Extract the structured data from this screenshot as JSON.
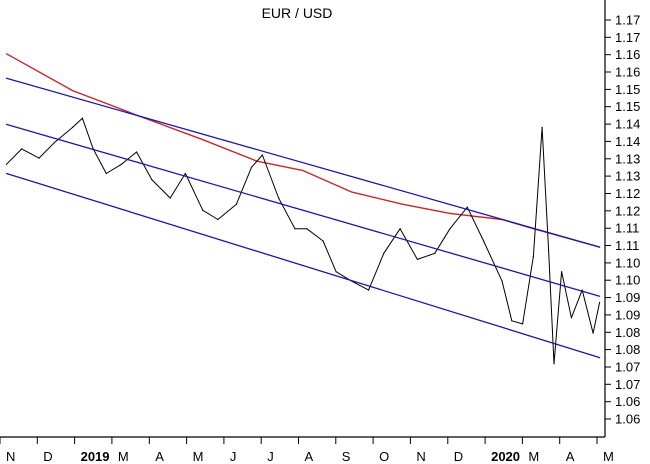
{
  "chart_data": {
    "type": "line",
    "title": "EUR / USD",
    "xlabel": "",
    "ylabel": "",
    "ylim": [
      1.05,
      1.18
    ],
    "y_axis_side": "right",
    "y_ticks": [
      "1.17",
      "1.17",
      "1.16",
      "1.16",
      "1.15",
      "1.15",
      "1.14",
      "1.14",
      "1.13",
      "1.13",
      "1.12",
      "1.12",
      "1.11",
      "1.11",
      "1.10",
      "1.10",
      "1.09",
      "1.09",
      "1.08",
      "1.08",
      "1.07",
      "1.07",
      "1.06",
      "1.06"
    ],
    "x_ticks": [
      {
        "label": "N",
        "bold": false
      },
      {
        "label": "D",
        "bold": false
      },
      {
        "label": "2019",
        "bold": true
      },
      {
        "label": "M",
        "bold": false
      },
      {
        "label": "A",
        "bold": false
      },
      {
        "label": "M",
        "bold": false
      },
      {
        "label": "J",
        "bold": false
      },
      {
        "label": "J",
        "bold": false
      },
      {
        "label": "A",
        "bold": false
      },
      {
        "label": "S",
        "bold": false
      },
      {
        "label": "O",
        "bold": false
      },
      {
        "label": "N",
        "bold": false
      },
      {
        "label": "D",
        "bold": false
      },
      {
        "label": "2020",
        "bold": true
      },
      {
        "label": "M",
        "bold": false
      },
      {
        "label": "A",
        "bold": false
      },
      {
        "label": "M",
        "bold": false
      }
    ],
    "series": [
      {
        "role": "price",
        "color": "#000000",
        "x": [
          "2018-11-01",
          "2018-11-15",
          "2018-12-01",
          "2018-12-15",
          "2019-01-01",
          "2019-01-10",
          "2019-01-20",
          "2019-02-01",
          "2019-02-15",
          "2019-03-01",
          "2019-03-15",
          "2019-04-01",
          "2019-04-15",
          "2019-05-01",
          "2019-05-15",
          "2019-06-01",
          "2019-06-15",
          "2019-06-25",
          "2019-07-10",
          "2019-07-25",
          "2019-08-05",
          "2019-08-20",
          "2019-09-01",
          "2019-09-15",
          "2019-10-01",
          "2019-10-15",
          "2019-10-30",
          "2019-11-15",
          "2019-12-01",
          "2019-12-15",
          "2019-12-31",
          "2020-01-15",
          "2020-02-01",
          "2020-02-10",
          "2020-02-20",
          "2020-03-01",
          "2020-03-09",
          "2020-03-15",
          "2020-03-20",
          "2020-03-27",
          "2020-04-05",
          "2020-04-15",
          "2020-04-25",
          "2020-05-01"
        ],
        "y": [
          1.133,
          1.138,
          1.135,
          1.14,
          1.145,
          1.148,
          1.138,
          1.13,
          1.133,
          1.137,
          1.128,
          1.122,
          1.13,
          1.118,
          1.115,
          1.12,
          1.132,
          1.136,
          1.122,
          1.112,
          1.112,
          1.108,
          1.098,
          1.095,
          1.092,
          1.104,
          1.112,
          1.102,
          1.104,
          1.112,
          1.119,
          1.108,
          1.095,
          1.082,
          1.081,
          1.103,
          1.145,
          1.105,
          1.068,
          1.098,
          1.083,
          1.092,
          1.078,
          1.088
        ]
      },
      {
        "role": "moving-average",
        "color": "#c62828",
        "x": [
          "2018-11-01",
          "2019-01-01",
          "2019-03-01",
          "2019-05-01",
          "2019-06-20",
          "2019-08-01",
          "2019-09-15",
          "2019-11-01",
          "2019-12-15",
          "2020-02-01",
          "2020-03-01",
          "2020-05-01"
        ],
        "y": [
          1.169,
          1.157,
          1.149,
          1.141,
          1.134,
          1.131,
          1.124,
          1.12,
          1.117,
          1.115,
          1.112,
          1.106
        ]
      },
      {
        "role": "channel-upper",
        "color": "#1a1aa6",
        "x": [
          "2018-11-01",
          "2020-05-01"
        ],
        "y": [
          1.161,
          1.106
        ]
      },
      {
        "role": "channel-middle",
        "color": "#1a1aa6",
        "x": [
          "2018-11-01",
          "2020-05-01"
        ],
        "y": [
          1.146,
          1.09
        ]
      },
      {
        "role": "channel-lower",
        "color": "#1a1aa6",
        "x": [
          "2018-11-01",
          "2020-05-01"
        ],
        "y": [
          1.13,
          1.07
        ]
      }
    ],
    "grid": false,
    "legend": "none"
  }
}
